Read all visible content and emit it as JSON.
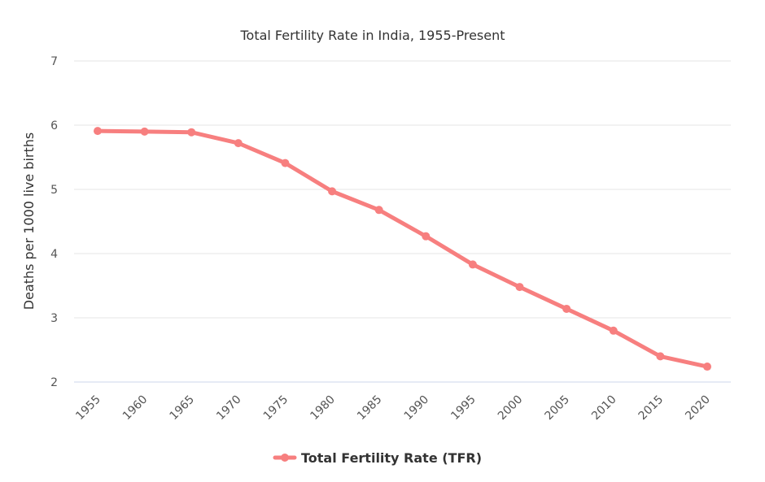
{
  "chart_data": {
    "type": "line",
    "title": "Total Fertility Rate in India, 1955-Present",
    "ylabel": "Deaths per 1000 live births",
    "xlabel": "",
    "ylim": [
      2,
      7
    ],
    "yticks": [
      2,
      3,
      4,
      5,
      6,
      7
    ],
    "grid": true,
    "legend_placement": "bottom-center",
    "categories": [
      "1955",
      "1960",
      "1965",
      "1970",
      "1975",
      "1980",
      "1985",
      "1990",
      "1995",
      "2000",
      "2005",
      "2010",
      "2015",
      "2020"
    ],
    "series": [
      {
        "name": "Total Fertility Rate (TFR)",
        "color": "#f77f7f",
        "values": [
          5.91,
          5.9,
          5.89,
          5.72,
          5.41,
          4.97,
          4.68,
          4.27,
          3.83,
          3.48,
          3.14,
          2.8,
          2.4,
          2.24
        ]
      }
    ]
  }
}
